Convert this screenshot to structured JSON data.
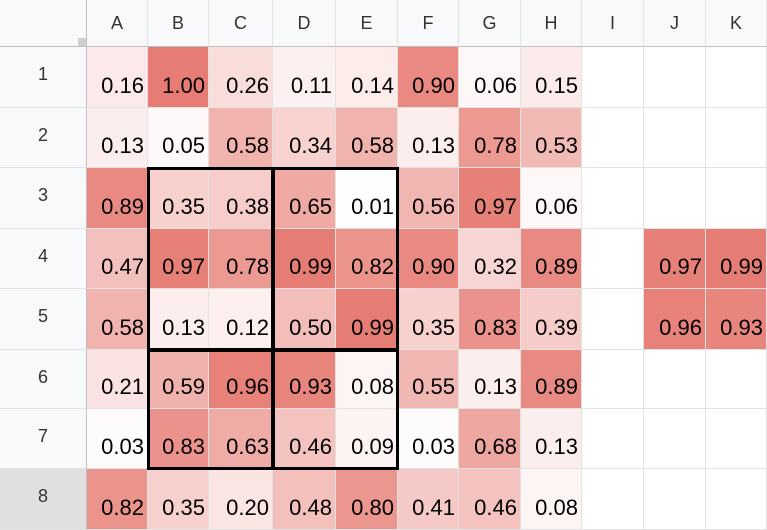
{
  "columns": [
    "A",
    "B",
    "C",
    "D",
    "E",
    "F",
    "G",
    "H",
    "I",
    "J",
    "K"
  ],
  "rows": [
    "1",
    "2",
    "3",
    "4",
    "5",
    "6",
    "7",
    "8"
  ],
  "selected_row": "8",
  "heat_color": "#e67c73",
  "cells": [
    [
      "0.16",
      "1.00",
      "0.26",
      "0.11",
      "0.14",
      "0.90",
      "0.06",
      "0.15",
      "",
      "",
      ""
    ],
    [
      "0.13",
      "0.05",
      "0.58",
      "0.34",
      "0.58",
      "0.13",
      "0.78",
      "0.53",
      "",
      "",
      ""
    ],
    [
      "0.89",
      "0.35",
      "0.38",
      "0.65",
      "0.01",
      "0.56",
      "0.97",
      "0.06",
      "",
      "",
      ""
    ],
    [
      "0.47",
      "0.97",
      "0.78",
      "0.99",
      "0.82",
      "0.90",
      "0.32",
      "0.89",
      "",
      "0.97",
      "0.99"
    ],
    [
      "0.58",
      "0.13",
      "0.12",
      "0.50",
      "0.99",
      "0.35",
      "0.83",
      "0.39",
      "",
      "0.96",
      "0.93"
    ],
    [
      "0.21",
      "0.59",
      "0.96",
      "0.93",
      "0.08",
      "0.55",
      "0.13",
      "0.89",
      "",
      "",
      ""
    ],
    [
      "0.03",
      "0.83",
      "0.63",
      "0.46",
      "0.09",
      "0.03",
      "0.68",
      "0.13",
      "",
      "",
      ""
    ],
    [
      "0.82",
      "0.35",
      "0.20",
      "0.48",
      "0.80",
      "0.41",
      "0.46",
      "0.08",
      "",
      "",
      ""
    ]
  ]
}
